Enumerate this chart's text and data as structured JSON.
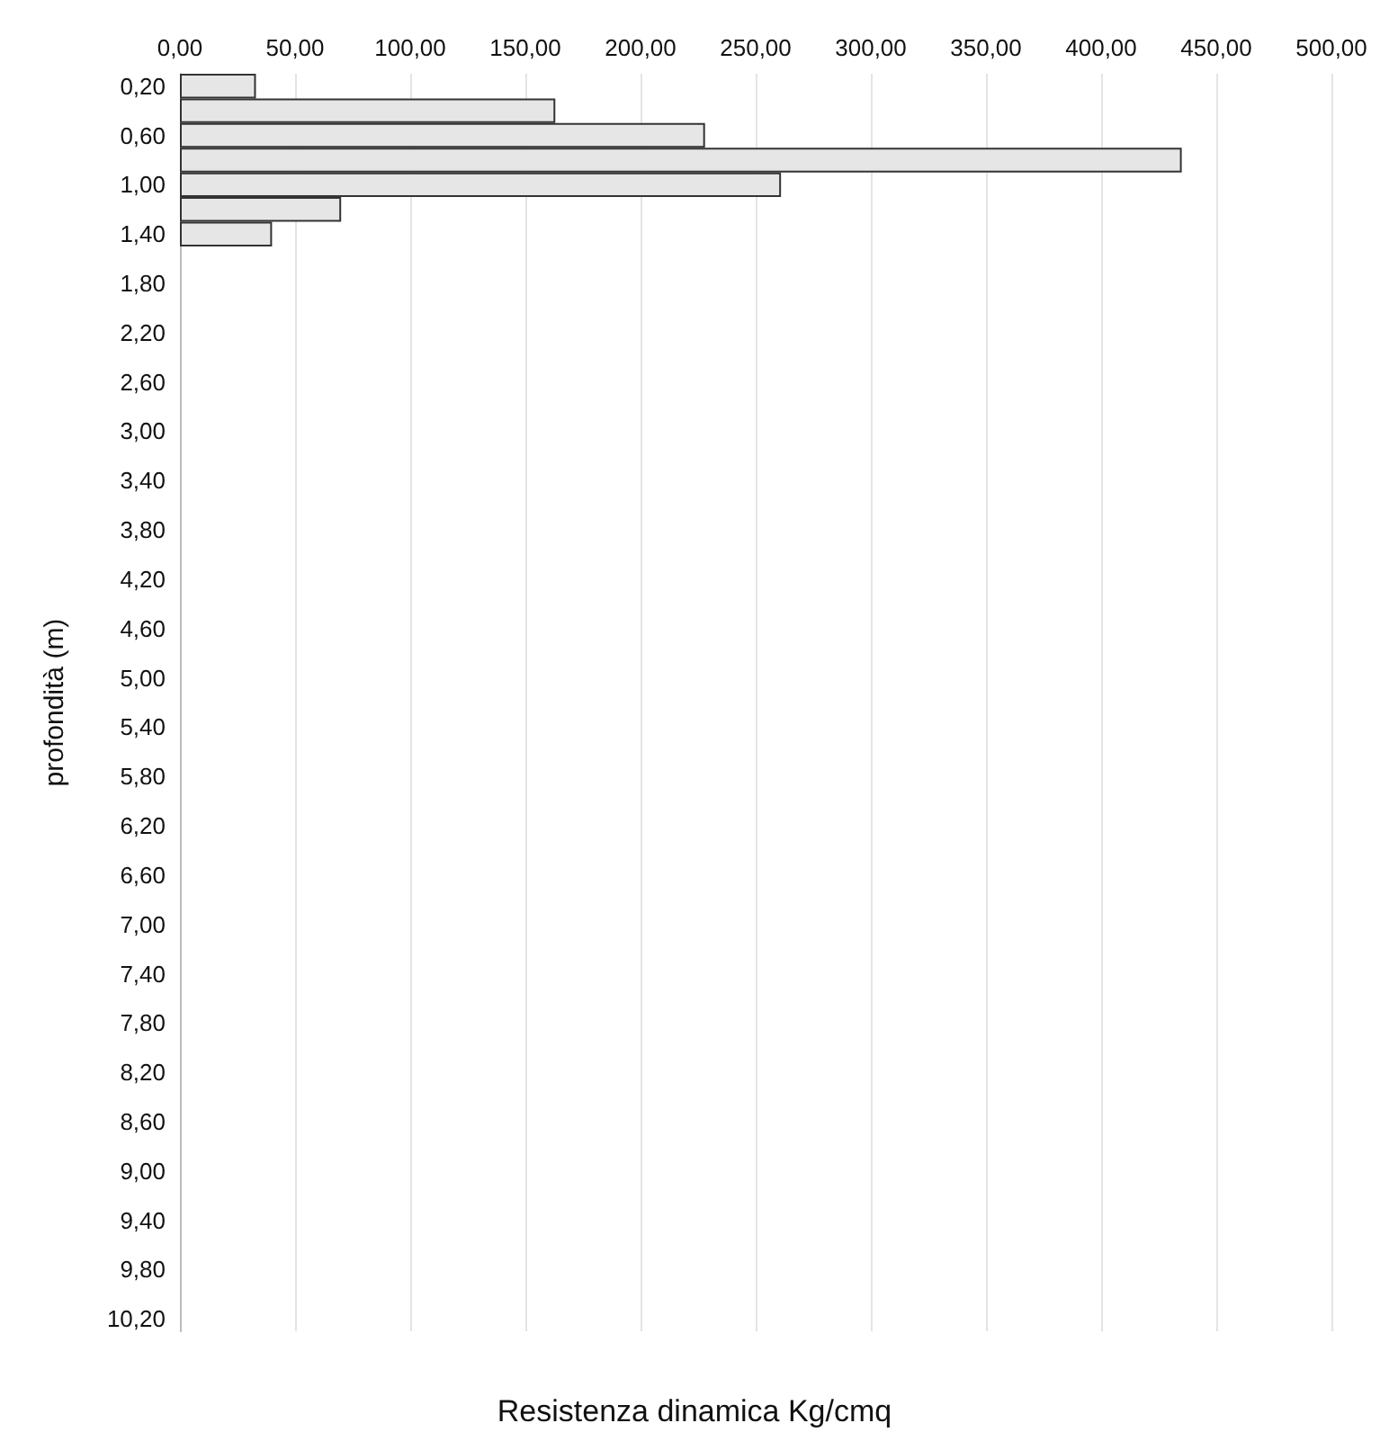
{
  "chart_data": {
    "type": "bar",
    "orientation": "horizontal",
    "xlabel": "Resistenza dinamica Kg/cmq",
    "ylabel": "profondità (m)",
    "categories": [
      "0,20",
      null,
      "0,60",
      null,
      "1,00",
      null,
      "1,40",
      null,
      "1,80",
      null,
      "2,20",
      null,
      "2,60",
      null,
      "3,00",
      null,
      "3,40",
      null,
      "3,80",
      null,
      "4,20",
      null,
      "4,60",
      null,
      "5,00",
      null,
      "5,40",
      null,
      "5,80",
      null,
      "6,20",
      null,
      "6,60",
      null,
      "7,00",
      null,
      "7,40",
      null,
      "7,80",
      null,
      "8,20",
      null,
      "8,60",
      null,
      "9,00",
      null,
      "9,40",
      null,
      "9,80",
      null,
      "10,20"
    ],
    "values": [
      33,
      163,
      228,
      435,
      261,
      70,
      40,
      null,
      null,
      null,
      null,
      null,
      null,
      null,
      null,
      null,
      null,
      null,
      null,
      null,
      null,
      null,
      null,
      null,
      null,
      null,
      null,
      null,
      null,
      null,
      null,
      null,
      null,
      null,
      null,
      null,
      null,
      null,
      null,
      null,
      null,
      null,
      null,
      null,
      null,
      null,
      null,
      null,
      null,
      null,
      null
    ],
    "color": "#e6e6e6",
    "xlim": [
      0,
      500
    ],
    "xticks": [
      {
        "value": 0,
        "label": "0,00"
      },
      {
        "value": 50,
        "label": "50,00"
      },
      {
        "value": 100,
        "label": "100,00"
      },
      {
        "value": 150,
        "label": "150,00"
      },
      {
        "value": 200,
        "label": "200,00"
      },
      {
        "value": 250,
        "label": "250,00"
      },
      {
        "value": 300,
        "label": "300,00"
      },
      {
        "value": 350,
        "label": "350,00"
      },
      {
        "value": 400,
        "label": "400,00"
      },
      {
        "value": 450,
        "label": "450,00"
      },
      {
        "value": 500,
        "label": "500,00"
      }
    ],
    "grid": "x"
  }
}
